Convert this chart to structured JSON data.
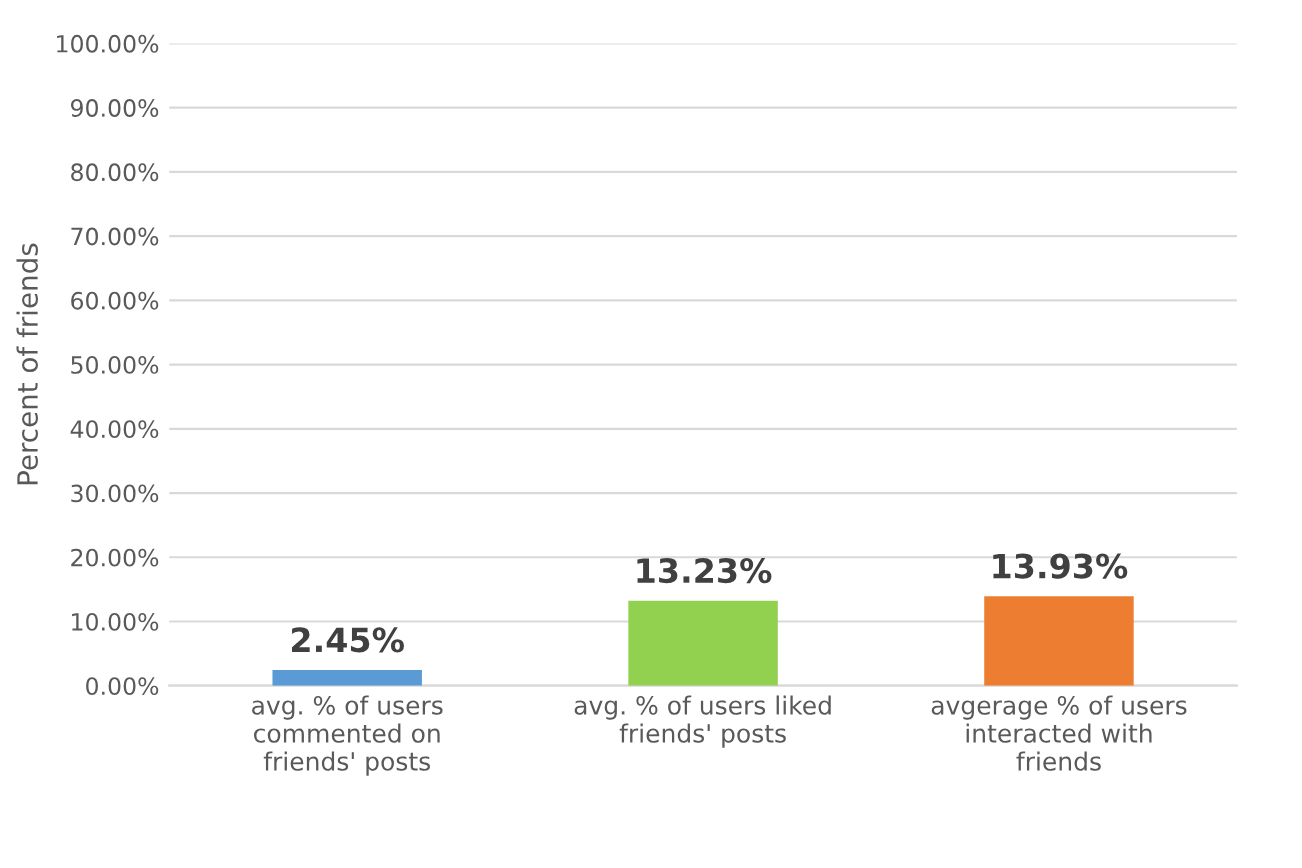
{
  "chart_data": {
    "type": "bar",
    "ylabel": "Percent of friends",
    "categories": [
      "avg. % of users\ncommented on\nfriends' posts",
      "avg. % of users liked\nfriends' posts",
      "avgerage % of users\ninteracted with\nfriends"
    ],
    "values": [
      2.45,
      13.23,
      13.93
    ],
    "colors": [
      "#5b9bd5",
      "#92d050",
      "#ed7d31"
    ],
    "value_labels": [
      "2.45%",
      "13.23%",
      "13.93%"
    ],
    "ylim": [
      0,
      100
    ],
    "yticks": [
      {
        "value": 0,
        "label": "0.00%"
      },
      {
        "value": 10,
        "label": "10.00%"
      },
      {
        "value": 20,
        "label": "20.00%"
      },
      {
        "value": 30,
        "label": "30.00%"
      },
      {
        "value": 40,
        "label": "40.00%"
      },
      {
        "value": 50,
        "label": "50.00%"
      },
      {
        "value": 60,
        "label": "60.00%"
      },
      {
        "value": 70,
        "label": "70.00%"
      },
      {
        "value": 80,
        "label": "80.00%"
      },
      {
        "value": 90,
        "label": "90.00%"
      },
      {
        "value": 100,
        "label": "100.00%"
      }
    ],
    "grid": "y",
    "legend": false
  }
}
